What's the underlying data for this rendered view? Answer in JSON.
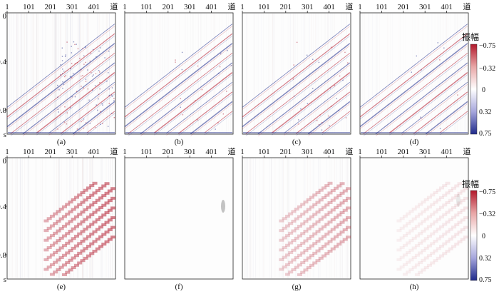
{
  "chart_data": {
    "type": "heatmap",
    "x_ticks": [
      "1",
      "101",
      "201",
      "301",
      "401"
    ],
    "x_unit": "道",
    "y_ticks": [
      "0",
      "0.4",
      "0.8"
    ],
    "y_unit": "s",
    "ylim": [
      0,
      1.0
    ],
    "panels": [
      {
        "label": "(a)",
        "row": 0,
        "col": 0,
        "content": "full",
        "noise": 0.55
      },
      {
        "label": "(b)",
        "row": 0,
        "col": 1,
        "content": "full",
        "noise": 0.1
      },
      {
        "label": "(c)",
        "row": 0,
        "col": 2,
        "content": "full",
        "noise": 0.15
      },
      {
        "label": "(d)",
        "row": 0,
        "col": 3,
        "content": "full",
        "noise": 0.05
      },
      {
        "label": "(e)",
        "row": 1,
        "col": 0,
        "content": "residual_strong",
        "noise": 0.4
      },
      {
        "label": "(f)",
        "row": 1,
        "col": 1,
        "content": "residual_spot",
        "noise": 0.0
      },
      {
        "label": "(g)",
        "row": 1,
        "col": 2,
        "content": "residual_medium",
        "noise": 0.25
      },
      {
        "label": "(h)",
        "row": 1,
        "col": 3,
        "content": "residual_faint",
        "noise": 0.0
      }
    ],
    "colorbar": {
      "title": "振幅",
      "ticks": [
        "−0.75",
        "−0.32",
        "0",
        "0.32",
        "0.75"
      ],
      "colors": [
        "#b2182b",
        "#e8a6a6",
        "#ffffff",
        "#a6a6dc",
        "#1f2a8a"
      ]
    }
  }
}
